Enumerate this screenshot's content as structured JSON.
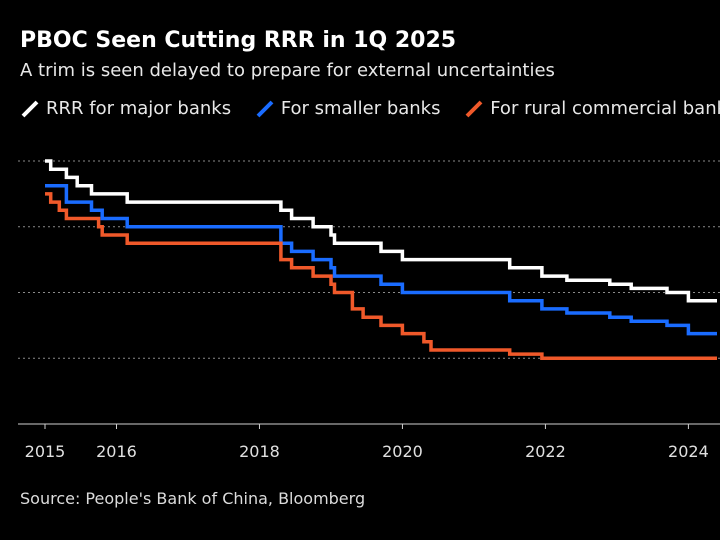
{
  "chart_data": {
    "type": "line",
    "title": "PBOC Seen Cutting RRR in 1Q 2025",
    "subtitle": "A trim is seen delayed to prepare for external uncertainties",
    "xlabel": "",
    "ylabel": "",
    "xlim": [
      2015.0,
      2024.4
    ],
    "ylim": [
      4,
      20
    ],
    "grid": true,
    "x_ticks": [
      2015,
      2016,
      2018,
      2020,
      2022,
      2024
    ],
    "x_tick_labels": [
      "2015",
      "2016",
      "2018",
      "2020",
      "2022",
      "2024"
    ],
    "y_gridlines": [
      8,
      12,
      16,
      20
    ],
    "series": [
      {
        "name": "RRR for major banks",
        "color": "#ffffff",
        "points": [
          [
            2015.0,
            20.0
          ],
          [
            2015.08,
            20.0
          ],
          [
            2015.08,
            19.5
          ],
          [
            2015.3,
            19.5
          ],
          [
            2015.3,
            19.0
          ],
          [
            2015.45,
            19.0
          ],
          [
            2015.45,
            18.5
          ],
          [
            2015.65,
            18.5
          ],
          [
            2015.65,
            18.0
          ],
          [
            2016.15,
            18.0
          ],
          [
            2016.15,
            17.5
          ],
          [
            2018.3,
            17.5
          ],
          [
            2018.3,
            17.0
          ],
          [
            2018.45,
            17.0
          ],
          [
            2018.45,
            16.5
          ],
          [
            2018.75,
            16.5
          ],
          [
            2018.75,
            16.0
          ],
          [
            2019.0,
            16.0
          ],
          [
            2019.0,
            15.5
          ],
          [
            2019.05,
            15.5
          ],
          [
            2019.05,
            15.0
          ],
          [
            2019.7,
            15.0
          ],
          [
            2019.7,
            14.5
          ],
          [
            2020.0,
            14.5
          ],
          [
            2020.0,
            14.0
          ],
          [
            2021.5,
            14.0
          ],
          [
            2021.5,
            13.5
          ],
          [
            2021.95,
            13.5
          ],
          [
            2021.95,
            13.0
          ],
          [
            2022.3,
            13.0
          ],
          [
            2022.3,
            12.75
          ],
          [
            2022.9,
            12.75
          ],
          [
            2022.9,
            12.5
          ],
          [
            2023.2,
            12.5
          ],
          [
            2023.2,
            12.25
          ],
          [
            2023.7,
            12.25
          ],
          [
            2023.7,
            12.0
          ],
          [
            2024.0,
            12.0
          ],
          [
            2024.0,
            11.5
          ],
          [
            2024.4,
            11.5
          ]
        ]
      },
      {
        "name": "For smaller banks",
        "color": "#1a6cff",
        "points": [
          [
            2015.0,
            18.5
          ],
          [
            2015.3,
            18.5
          ],
          [
            2015.3,
            17.5
          ],
          [
            2015.65,
            17.5
          ],
          [
            2015.65,
            17.0
          ],
          [
            2015.8,
            17.0
          ],
          [
            2015.8,
            16.5
          ],
          [
            2016.15,
            16.5
          ],
          [
            2016.15,
            16.0
          ],
          [
            2018.3,
            16.0
          ],
          [
            2018.3,
            15.0
          ],
          [
            2018.45,
            15.0
          ],
          [
            2018.45,
            14.5
          ],
          [
            2018.75,
            14.5
          ],
          [
            2018.75,
            14.0
          ],
          [
            2019.0,
            14.0
          ],
          [
            2019.0,
            13.5
          ],
          [
            2019.05,
            13.5
          ],
          [
            2019.05,
            13.0
          ],
          [
            2019.7,
            13.0
          ],
          [
            2019.7,
            12.5
          ],
          [
            2020.0,
            12.5
          ],
          [
            2020.0,
            12.0
          ],
          [
            2021.5,
            12.0
          ],
          [
            2021.5,
            11.5
          ],
          [
            2021.95,
            11.5
          ],
          [
            2021.95,
            11.0
          ],
          [
            2022.3,
            11.0
          ],
          [
            2022.3,
            10.75
          ],
          [
            2022.9,
            10.75
          ],
          [
            2022.9,
            10.5
          ],
          [
            2023.2,
            10.5
          ],
          [
            2023.2,
            10.25
          ],
          [
            2023.7,
            10.25
          ],
          [
            2023.7,
            10.0
          ],
          [
            2024.0,
            10.0
          ],
          [
            2024.0,
            9.5
          ],
          [
            2024.4,
            9.5
          ]
        ]
      },
      {
        "name": "For rural commercial banks",
        "color": "#f0592a",
        "points": [
          [
            2015.0,
            18.0
          ],
          [
            2015.08,
            18.0
          ],
          [
            2015.08,
            17.5
          ],
          [
            2015.2,
            17.5
          ],
          [
            2015.2,
            17.0
          ],
          [
            2015.3,
            17.0
          ],
          [
            2015.3,
            16.5
          ],
          [
            2015.75,
            16.5
          ],
          [
            2015.75,
            16.0
          ],
          [
            2015.8,
            16.0
          ],
          [
            2015.8,
            15.5
          ],
          [
            2016.15,
            15.5
          ],
          [
            2016.15,
            15.0
          ],
          [
            2018.3,
            15.0
          ],
          [
            2018.3,
            14.0
          ],
          [
            2018.45,
            14.0
          ],
          [
            2018.45,
            13.5
          ],
          [
            2018.75,
            13.5
          ],
          [
            2018.75,
            13.0
          ],
          [
            2019.0,
            13.0
          ],
          [
            2019.0,
            12.5
          ],
          [
            2019.05,
            12.5
          ],
          [
            2019.05,
            12.0
          ],
          [
            2019.3,
            12.0
          ],
          [
            2019.3,
            11.0
          ],
          [
            2019.45,
            11.0
          ],
          [
            2019.45,
            10.5
          ],
          [
            2019.7,
            10.5
          ],
          [
            2019.7,
            10.0
          ],
          [
            2020.0,
            10.0
          ],
          [
            2020.0,
            9.5
          ],
          [
            2020.3,
            9.5
          ],
          [
            2020.3,
            9.0
          ],
          [
            2020.4,
            9.0
          ],
          [
            2020.4,
            8.5
          ],
          [
            2021.5,
            8.5
          ],
          [
            2021.5,
            8.25
          ],
          [
            2021.95,
            8.25
          ],
          [
            2021.95,
            8.0
          ],
          [
            2024.4,
            8.0
          ]
        ]
      }
    ],
    "legend": [
      "RRR for major banks",
      "For smaller banks",
      "For rural commercial banks"
    ],
    "legend_position": "top-left",
    "source": "Source: People's Bank of China, Bloomberg"
  }
}
